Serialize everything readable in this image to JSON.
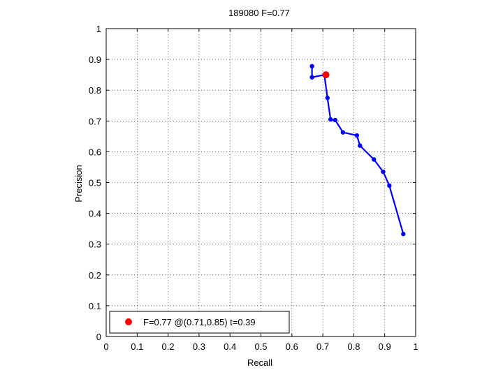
{
  "chart_data": {
    "type": "line",
    "title": "189080 F=0.77",
    "xlabel": "Recall",
    "ylabel": "Precision",
    "xlim": [
      0,
      1
    ],
    "ylim": [
      0,
      1
    ],
    "grid": true,
    "xticks": [
      "0",
      "0.1",
      "0.2",
      "0.3",
      "0.4",
      "0.5",
      "0.6",
      "0.7",
      "0.8",
      "0.9",
      "1"
    ],
    "yticks": [
      "0",
      "0.1",
      "0.2",
      "0.3",
      "0.4",
      "0.5",
      "0.6",
      "0.7",
      "0.8",
      "0.9",
      "1"
    ],
    "series": [
      {
        "color": "#0000ff",
        "marker": "dot",
        "x": [
          0.665,
          0.665,
          0.705,
          0.715,
          0.725,
          0.74,
          0.765,
          0.81,
          0.82,
          0.865,
          0.895,
          0.915,
          0.96
        ],
        "y": [
          0.878,
          0.842,
          0.85,
          0.775,
          0.705,
          0.703,
          0.663,
          0.653,
          0.62,
          0.575,
          0.535,
          0.49,
          0.333
        ]
      }
    ],
    "best_point": {
      "x": 0.71,
      "y": 0.85,
      "color": "#ff0000"
    },
    "legend": {
      "position": "bottom-left",
      "entries": [
        "F=0.77 @(0.71,0.85) t=0.39"
      ]
    }
  }
}
